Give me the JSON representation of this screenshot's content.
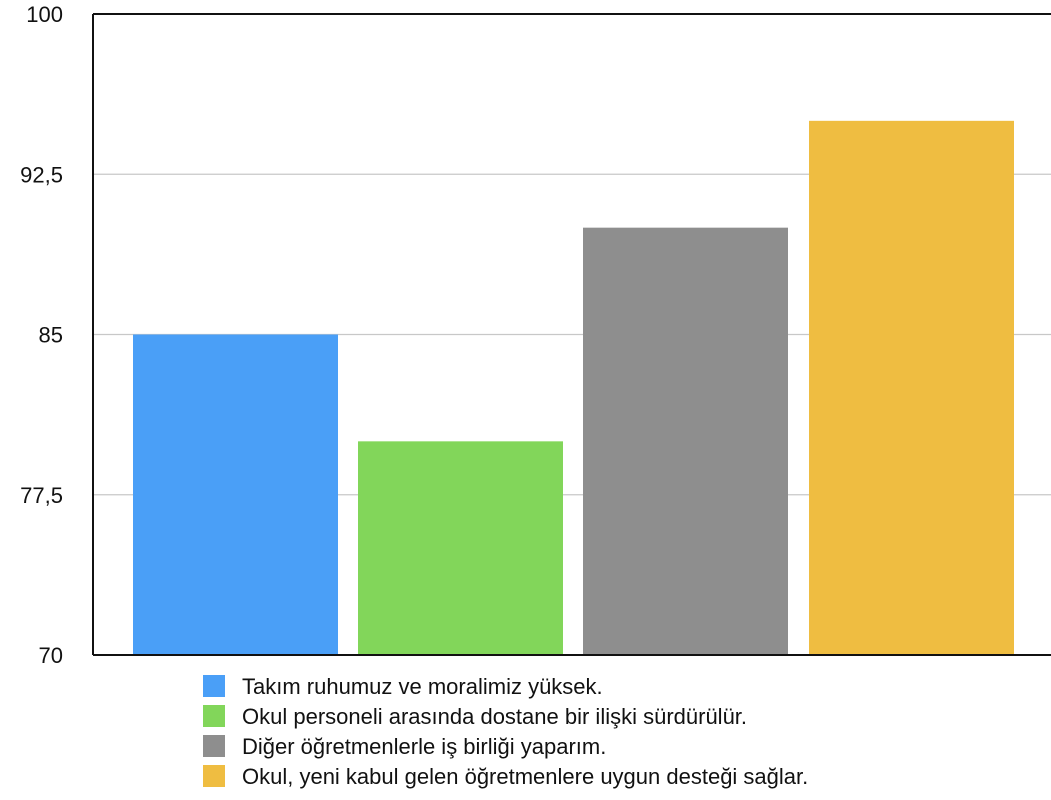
{
  "chart_data": {
    "type": "bar",
    "title": "",
    "xlabel": "",
    "ylabel": "",
    "ylim": [
      70,
      100
    ],
    "yticks": [
      70,
      77.5,
      85,
      92.5,
      100
    ],
    "ytick_labels": [
      "70",
      "77,5",
      "85",
      "92,5",
      "100"
    ],
    "grid": true,
    "legend_position": "bottom",
    "series": [
      {
        "name": "Takım ruhumuz ve moralimiz yüksek.",
        "value": 85,
        "color": "#4a9ff7"
      },
      {
        "name": "Okul personeli arasında dostane bir ilişki sürdürülür.",
        "value": 80,
        "color": "#82d65a"
      },
      {
        "name": "Diğer öğretmenlerle iş birliği yaparım.",
        "value": 90,
        "color": "#8e8e8e"
      },
      {
        "name": "Okul, yeni kabul gelen öğretmenlere uygun desteği sağlar.",
        "value": 95,
        "color": "#efbd41"
      }
    ]
  }
}
